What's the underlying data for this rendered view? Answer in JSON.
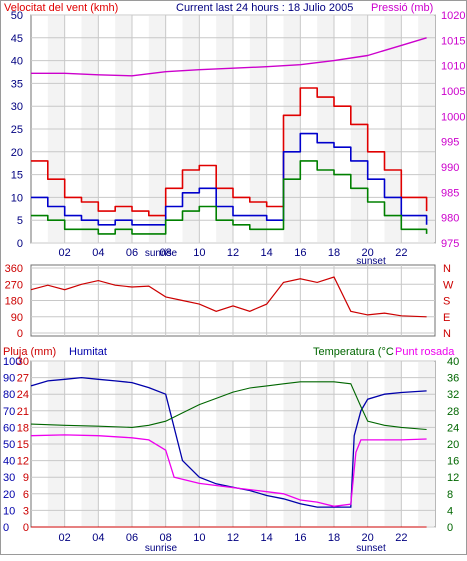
{
  "colors": {
    "wind": "#e00000",
    "gust": "#e00000",
    "wind_avg": "#0000cc",
    "wind_low": "#008000",
    "pressure": "#cc00cc",
    "direction": "#cc0000",
    "humidity": "#0000aa",
    "temperature": "#006600",
    "dewpoint": "#ee00ee",
    "rain": "#cc0000",
    "grid": "#c8c8c8",
    "sunrise_band": "#d8d8d8"
  },
  "chart_data": [
    {
      "type": "line",
      "title": "Current last 24 hours : 18 Julio 2005",
      "left_axis_label": "Velocitat del vent (kmh)",
      "right_axis_label": "Pressió (mb)",
      "x_ticks": [
        "02",
        "04",
        "06",
        "08",
        "10",
        "12",
        "14",
        "16",
        "18",
        "20",
        "22"
      ],
      "y_left_ticks": [
        "0",
        "5",
        "10",
        "15",
        "20",
        "25",
        "30",
        "35",
        "40",
        "45",
        "50"
      ],
      "y_right_ticks": [
        "975",
        "980",
        "985",
        "990",
        "995",
        "1000",
        "1005",
        "1010",
        "1015",
        "1020"
      ],
      "y_left_range": [
        0,
        50
      ],
      "y_right_range": [
        975,
        1020
      ],
      "x_range": [
        0,
        24
      ],
      "x_labels_extra": [
        "sunrise",
        "sunset"
      ],
      "sunrise_hour": 8.3,
      "sunset_hour": 20.2,
      "series": [
        {
          "key": "gust",
          "axis": "left",
          "x": [
            0,
            1,
            2,
            3,
            4,
            5,
            6,
            7,
            8,
            9,
            10,
            11,
            12,
            13,
            14,
            15,
            16,
            17,
            18,
            19,
            20,
            21,
            22,
            23.5
          ],
          "values": [
            18,
            14,
            10,
            9,
            7,
            8,
            7,
            6,
            12,
            16,
            17,
            12,
            10,
            9,
            8,
            28,
            34,
            32,
            30,
            26,
            20,
            16,
            10,
            7
          ]
        },
        {
          "key": "wind_avg",
          "axis": "left",
          "x": [
            0,
            1,
            2,
            3,
            4,
            5,
            6,
            7,
            8,
            9,
            10,
            11,
            12,
            13,
            14,
            15,
            16,
            17,
            18,
            19,
            20,
            21,
            22,
            23.5
          ],
          "values": [
            10,
            8,
            6,
            5,
            4,
            5,
            4,
            4,
            8,
            11,
            12,
            8,
            6,
            6,
            5,
            20,
            24,
            22,
            21,
            18,
            14,
            10,
            6,
            4
          ]
        },
        {
          "key": "wind_low",
          "axis": "left",
          "x": [
            0,
            1,
            2,
            3,
            4,
            5,
            6,
            7,
            8,
            9,
            10,
            11,
            12,
            13,
            14,
            15,
            16,
            17,
            18,
            19,
            20,
            21,
            22,
            23.5
          ],
          "values": [
            6,
            5,
            3,
            3,
            2,
            3,
            2,
            2,
            5,
            7,
            8,
            5,
            4,
            3,
            3,
            14,
            18,
            16,
            15,
            12,
            9,
            6,
            3,
            2
          ]
        },
        {
          "key": "pressure",
          "axis": "right",
          "x": [
            0,
            2,
            4,
            6,
            8,
            10,
            12,
            14,
            16,
            18,
            20,
            22,
            23.5
          ],
          "values": [
            1008.5,
            1008.5,
            1008.2,
            1008.0,
            1008.8,
            1009.2,
            1009.5,
            1009.8,
            1010.2,
            1011.0,
            1012.0,
            1014.0,
            1015.5
          ]
        }
      ]
    },
    {
      "type": "line",
      "title": "",
      "y_left_ticks": [
        "360",
        "270",
        "180",
        "90",
        "0"
      ],
      "y_right_ticks": [
        "N",
        "W",
        "S",
        "E",
        "N"
      ],
      "y_range": [
        0,
        360
      ],
      "x_range": [
        0,
        24
      ],
      "series": [
        {
          "key": "direction",
          "x": [
            0,
            1,
            2,
            3,
            4,
            5,
            6,
            7,
            8,
            9,
            10,
            11,
            12,
            13,
            14,
            15,
            16,
            17,
            18,
            19,
            20,
            21,
            22,
            23.5
          ],
          "values": [
            240,
            265,
            240,
            270,
            290,
            265,
            255,
            260,
            200,
            180,
            160,
            120,
            150,
            120,
            160,
            280,
            300,
            280,
            310,
            120,
            100,
            110,
            95,
            90
          ]
        }
      ]
    },
    {
      "type": "line",
      "title": "",
      "labels": {
        "rain": "Pluja (mm)",
        "humidity": "Humitat",
        "temperature": "Temperatura (°C",
        "dewpoint": "Punt rosada"
      },
      "y_humidity_ticks": [
        "100",
        "90",
        "80",
        "70",
        "60",
        "50",
        "40",
        "30",
        "20",
        "10",
        "0"
      ],
      "y_rain_ticks": [
        "30",
        "27",
        "24",
        "21",
        "18",
        "15",
        "12",
        "9",
        "6",
        "3",
        "0"
      ],
      "y_temp_ticks": [
        "40",
        "36",
        "32",
        "28",
        "24",
        "20",
        "16",
        "12",
        "8",
        "4",
        "0"
      ],
      "humidity_range": [
        0,
        100
      ],
      "rain_range": [
        0,
        30
      ],
      "temp_range": [
        0,
        40
      ],
      "x_range": [
        0,
        24
      ],
      "x_ticks": [
        "02",
        "04",
        "06",
        "08",
        "10",
        "12",
        "14",
        "16",
        "18",
        "20",
        "22"
      ],
      "x_labels_extra": [
        "sunrise",
        "sunset"
      ],
      "series": [
        {
          "key": "humidity",
          "x": [
            0,
            1,
            2,
            3,
            4,
            5,
            6,
            7,
            8,
            8.5,
            9,
            10,
            11,
            12,
            13,
            14,
            15,
            16,
            17,
            18,
            19,
            19.2,
            19.6,
            20,
            21,
            22,
            23.5
          ],
          "values": [
            85,
            88,
            89,
            90,
            89,
            88,
            87,
            84,
            80,
            60,
            40,
            30,
            26,
            24,
            22,
            19,
            17,
            14,
            12,
            12,
            12,
            55,
            70,
            77,
            80,
            81,
            82
          ]
        },
        {
          "key": "temperature",
          "x": [
            0,
            2,
            4,
            6,
            7,
            8,
            9,
            10,
            11,
            12,
            13,
            14,
            15,
            16,
            17,
            18,
            19,
            19.6,
            20,
            21,
            22,
            23.5
          ],
          "values": [
            24.8,
            24.5,
            24.3,
            24.0,
            24.5,
            25.5,
            27.5,
            29.5,
            31.0,
            32.5,
            33.5,
            34.0,
            34.5,
            35.0,
            35.0,
            35.0,
            34.5,
            29.0,
            25.5,
            24.5,
            24.0,
            23.5
          ]
        },
        {
          "key": "dewpoint",
          "x": [
            0,
            2,
            4,
            6,
            7,
            8,
            8.5,
            9,
            10,
            11,
            12,
            13,
            14,
            15,
            16,
            17,
            18,
            19,
            19.3,
            19.6,
            20,
            21,
            22,
            23.5
          ],
          "values": [
            22.0,
            22.2,
            22.0,
            21.5,
            21.0,
            18.5,
            12.0,
            11.5,
            10.5,
            10.0,
            9.5,
            9.0,
            8.5,
            8.0,
            6.5,
            6.0,
            5.0,
            5.5,
            18.0,
            21.0,
            21.0,
            21.0,
            21.0,
            21.2
          ]
        },
        {
          "key": "rain",
          "x": [
            0,
            23.5
          ],
          "values": [
            0,
            0
          ]
        }
      ]
    }
  ]
}
